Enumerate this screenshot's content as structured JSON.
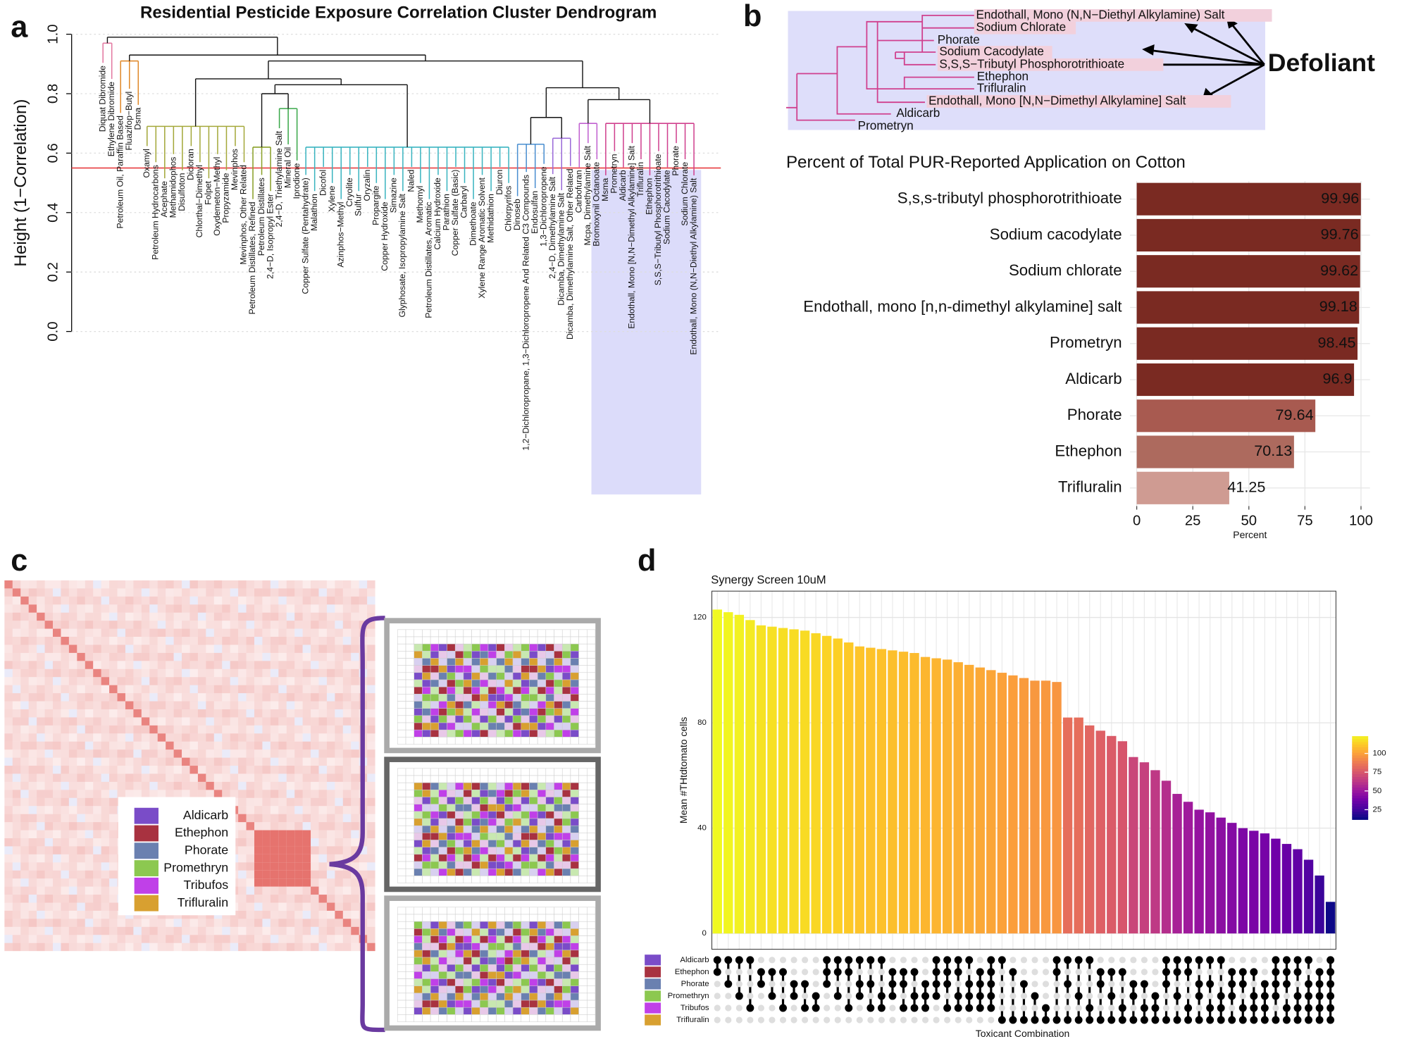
{
  "panel_labels": [
    "a",
    "b",
    "c",
    "d"
  ],
  "chart_data": [
    {
      "type": "dendrogram",
      "title": "Residential Pesticide Exposure Correlation Cluster Dendrogram",
      "ylabel": "Height (1−Correlation)",
      "ylim": [
        0,
        1
      ],
      "yticks": [
        {
          "value": 0,
          "label": "0.0"
        },
        0.2,
        0.4,
        0.6,
        0.8,
        {
          "value": 1,
          "label": "1.0"
        }
      ],
      "grid": true,
      "cutoff": 0.55,
      "cutoff_color": "#e8474a",
      "leaves": [
        "Diquat Dibromide",
        "Ethylene Dibromide",
        "Petroleum Oil, Paraffin Based",
        "Fluazifop−Butyl",
        "Dsma",
        "Oxamyl",
        "Petroleum Hydrocarbons",
        "Acephate",
        "Methamidophos",
        "Disulfoton",
        "Dicloran",
        "Chlorthal−Dimethyl",
        "Folpet",
        "Oxydemeton−Methyl",
        "Propyzamide",
        "Mevinphos",
        "Mevinphos, Other Related",
        "Petroleum Distillates, Refined",
        "Petroleum Distillates",
        "2,4−D, Isopropyl Ester",
        "2,4−D, Triethylamine Salt",
        "Mineral Oil",
        "Iprodione",
        "Copper Sulfate (Pentahydrate)",
        "Malathion",
        "Dicofol",
        "Xylene",
        "Azinphos−Methyl",
        "Cryolite",
        "Sulfur",
        "Oryzalin",
        "Propargite",
        "Copper Hydroxide",
        "Simazine",
        "Glyphosate, Isopropylamine Salt",
        "Naled",
        "Methomyl",
        "Petroleum Distillates, Aromatic",
        "Calcium Hydroxide",
        "Parathion",
        "Copper Sulfate (Basic)",
        "Carbaryl",
        "Dimethoate",
        "Xylene Range Aromatic Solvent",
        "Methidathion",
        "Diuron",
        "Chlorpyrifos",
        "Dinoseb",
        "1,2−Dichloropropane, 1,3−Dichloropropene And Related C3 Compounds",
        "Endosulfan",
        "1,3−Dichloropropene",
        "2,4−D, Dimethylamine Salt",
        "Dicamba, Dimethylamine Salt",
        "Dicamba, Dimethylamine Salt, Other Related",
        "Carbofuran",
        "Mcpa, Dimethylamine Salt",
        "Bromoxynil Octanoate",
        "Msma",
        "Prometryn",
        "Aldicarb",
        "Endothall, Mono [N,N−Dimethyl Alkylamine] Salt",
        "Trifluralin",
        "Ethephon",
        "S,S,S−Tributyl Phosphorotrithioate",
        "Sodium Cacodylate",
        "Phorate",
        "Sodium Chlorate",
        "Endothall, Mono (N,N−Diethyl Alkylamine) Salt"
      ],
      "clusters": [
        {
          "color": "#e377a0",
          "leaves": [
            0,
            1
          ],
          "height": 0.97
        },
        {
          "color": "#e0892a",
          "leaves": [
            2,
            4
          ],
          "height": 0.91
        },
        {
          "color": "#a4a83a",
          "leaves": [
            5,
            16
          ],
          "height": 0.69
        },
        {
          "color": "#8aa028",
          "leaves": [
            17,
            19
          ],
          "height": 0.62
        },
        {
          "color": "#3aa84a",
          "leaves": [
            20,
            22
          ],
          "height": 0.75
        },
        {
          "color": "#3ab4c0",
          "leaves": [
            23,
            46
          ],
          "height": 0.62
        },
        {
          "color": "#4a8fd0",
          "leaves": [
            47,
            50
          ],
          "height": 0.63
        },
        {
          "color": "#9a6ad8",
          "leaves": [
            51,
            53
          ],
          "height": 0.65
        },
        {
          "color": "#c060d0",
          "leaves": [
            54,
            56
          ],
          "height": 0.7
        },
        {
          "color": "#d0408e",
          "leaves": [
            57,
            67
          ],
          "height": 0.7
        }
      ],
      "merges": [
        [
          3,
          4,
          0.8
        ],
        [
          10,
          5,
          0.83
        ],
        [
          2,
          11,
          0.85
        ],
        [
          6,
          7,
          0.72
        ],
        [
          8,
          9,
          0.78
        ],
        [
          13,
          14,
          0.82
        ],
        [
          12,
          15,
          0.91
        ],
        [
          1,
          16,
          0.93
        ],
        [
          0,
          17,
          0.99
        ]
      ],
      "highlight_cluster": 9
    },
    {
      "type": "tree",
      "labels": [
        {
          "text": "Endothall, Mono (N,N−Diethyl Alkylamine) Salt",
          "highlighted": true
        },
        {
          "text": "Sodium Chlorate",
          "highlighted": true
        },
        {
          "text": "Phorate",
          "highlighted": false
        },
        {
          "text": "Sodium Cacodylate",
          "highlighted": true
        },
        {
          "text": "S,S,S−Tributyl Phosphorotrithioate",
          "highlighted": true
        },
        {
          "text": "Ethephon",
          "highlighted": false
        },
        {
          "text": "Trifluralin",
          "highlighted": false
        },
        {
          "text": "Endothall, Mono [N,N−Dimethyl Alkylamine] Salt",
          "highlighted": true
        },
        {
          "text": "Aldicarb",
          "highlighted": false
        },
        {
          "text": "Prometryn",
          "highlighted": false
        }
      ],
      "annotation": "Defoliant"
    },
    {
      "type": "barh",
      "title": "Percent of Total PUR-Reported Application on Cotton",
      "xlabel": "Percent",
      "categories": [
        "S,s,s-tributyl phosphorotrithioate",
        "Sodium cacodylate",
        "Sodium chlorate",
        "Endothall, mono [n,n-dimethyl alkylamine] salt",
        "Prometryn",
        "Aldicarb",
        "Phorate",
        "Ethephon",
        "Trifluralin"
      ],
      "values": [
        99.96,
        99.76,
        99.62,
        99.18,
        98.45,
        96.9,
        79.64,
        70.13,
        41.25
      ],
      "colors": [
        "#7a2a22",
        "#7a2a22",
        "#7a2a22",
        "#7a2a22",
        "#7a2a22",
        "#7a2a22",
        "#a85a50",
        "#ad6a5e",
        "#cf9b92"
      ],
      "xlim": [
        -3,
        104
      ],
      "xticks": [
        0,
        25,
        50,
        75,
        100
      ],
      "grid": true
    },
    {
      "type": "heatmap",
      "legend": [
        {
          "name": "Aldicarb",
          "color": "#7a4cc8"
        },
        {
          "name": "Ethephon",
          "color": "#a83240"
        },
        {
          "name": "Phorate",
          "color": "#6a80b0"
        },
        {
          "name": "Promethryn",
          "color": "#8cc850"
        },
        {
          "name": "Tribufos",
          "color": "#c040e8"
        },
        {
          "name": "Trifluralin",
          "color": "#d8a030"
        }
      ]
    },
    {
      "type": "upset",
      "title": "Synergy Screen 10uM",
      "ylabel": "Mean #THtdtomato cells",
      "xlabel": "Toxicant Combination",
      "sets": [
        {
          "name": "Aldicarb",
          "color": "#7a4cc8"
        },
        {
          "name": "Ethephon",
          "color": "#a83240"
        },
        {
          "name": "Phorate",
          "color": "#6a80b0"
        },
        {
          "name": "Promethryn",
          "color": "#8cc850"
        },
        {
          "name": "Tribufos",
          "color": "#c040e8"
        },
        {
          "name": "Trifluralin",
          "color": "#d8a030"
        }
      ],
      "values": [
        123,
        122,
        121,
        119,
        117,
        116.5,
        116,
        115.5,
        115,
        114,
        113,
        112,
        110.5,
        109,
        108.5,
        108,
        107.5,
        107,
        106.5,
        105,
        104.5,
        104,
        103,
        102,
        101,
        100,
        99,
        98,
        97,
        96,
        96,
        95.5,
        82,
        82,
        79,
        77,
        75,
        73,
        67,
        65,
        62,
        58,
        53,
        50,
        47,
        46,
        44,
        42,
        40,
        39,
        38,
        36,
        34,
        32,
        28,
        22,
        12
      ],
      "combinations": [
        [
          0,
          1
        ],
        [
          0,
          2
        ],
        [
          0,
          3
        ],
        [
          0,
          4
        ],
        [
          1,
          2
        ],
        [
          1,
          3
        ],
        [
          1,
          4
        ],
        [
          2,
          3
        ],
        [
          2,
          4
        ],
        [
          3,
          4
        ],
        [
          0,
          1,
          2
        ],
        [
          0,
          1,
          3
        ],
        [
          0,
          1,
          4
        ],
        [
          0,
          2,
          3
        ],
        [
          0,
          2,
          4
        ],
        [
          0,
          3,
          4
        ],
        [
          1,
          2,
          3
        ],
        [
          1,
          2,
          4
        ],
        [
          1,
          3,
          4
        ],
        [
          2,
          3,
          4
        ],
        [
          0,
          1,
          2,
          3
        ],
        [
          0,
          1,
          2,
          4
        ],
        [
          0,
          1,
          3,
          4
        ],
        [
          0,
          2,
          3,
          4
        ],
        [
          1,
          2,
          3,
          4
        ],
        [
          0,
          1,
          2,
          3,
          4
        ],
        [
          0,
          5
        ],
        [
          1,
          5
        ],
        [
          2,
          5
        ],
        [
          3,
          5
        ],
        [
          4,
          5
        ],
        [
          0,
          1,
          5
        ],
        [
          0,
          2,
          5
        ],
        [
          0,
          3,
          5
        ],
        [
          0,
          4,
          5
        ],
        [
          1,
          2,
          5
        ],
        [
          1,
          3,
          5
        ],
        [
          1,
          4,
          5
        ],
        [
          2,
          3,
          5
        ],
        [
          2,
          4,
          5
        ],
        [
          3,
          4,
          5
        ],
        [
          0,
          1,
          2,
          5
        ],
        [
          0,
          1,
          3,
          5
        ],
        [
          0,
          1,
          4,
          5
        ],
        [
          0,
          2,
          3,
          5
        ],
        [
          0,
          2,
          4,
          5
        ],
        [
          0,
          3,
          4,
          5
        ],
        [
          1,
          2,
          3,
          5
        ],
        [
          1,
          2,
          4,
          5
        ],
        [
          1,
          3,
          4,
          5
        ],
        [
          2,
          3,
          4,
          5
        ],
        [
          0,
          1,
          2,
          3,
          5
        ],
        [
          0,
          1,
          2,
          4,
          5
        ],
        [
          0,
          1,
          3,
          4,
          5
        ],
        [
          0,
          2,
          3,
          4,
          5
        ],
        [
          1,
          2,
          3,
          4,
          5
        ],
        [
          0,
          1,
          2,
          3,
          4,
          5
        ]
      ],
      "ylim": [
        -6,
        130
      ],
      "yticks": [
        0,
        40,
        80,
        120
      ],
      "grid": true,
      "colorscale": "plasma",
      "color_lim": [
        12,
        123
      ],
      "colorbar_ticks": [
        25,
        50,
        75,
        100
      ]
    }
  ]
}
